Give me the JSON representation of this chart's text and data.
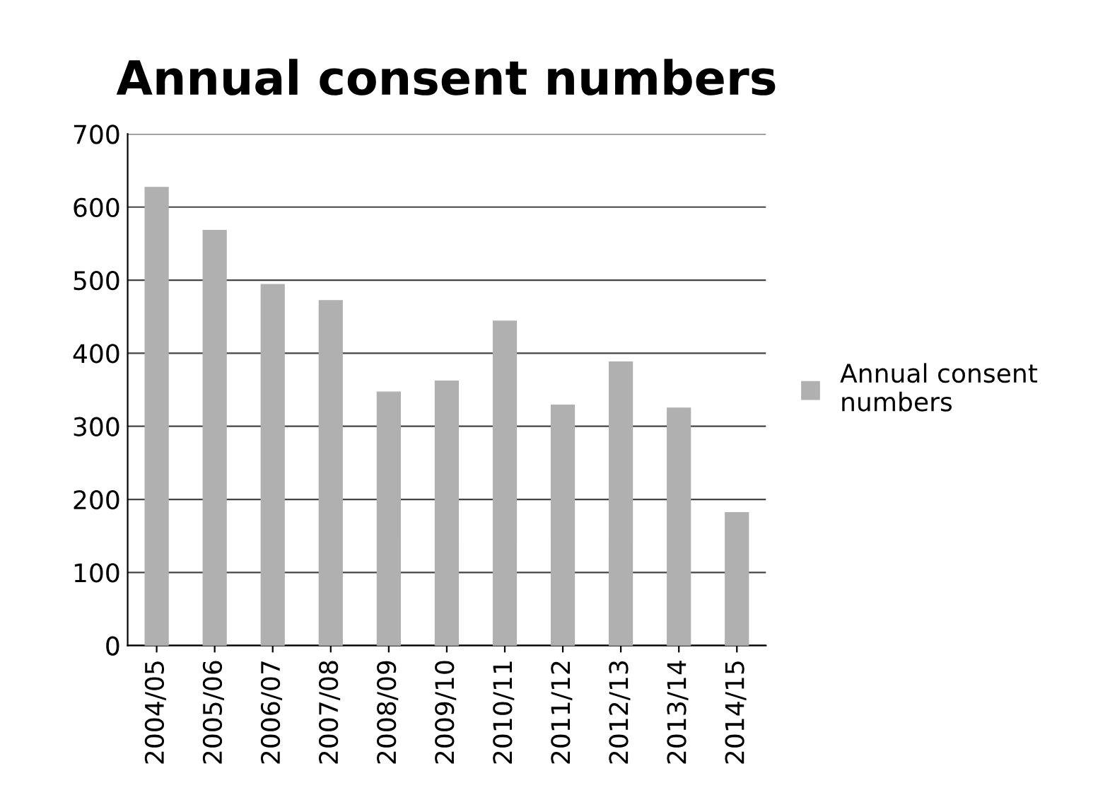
{
  "chart_data": {
    "type": "bar",
    "title": "Annual consent numbers",
    "categories": [
      "2004/05",
      "2005/06",
      "2006/07",
      "2007/08",
      "2008/09",
      "2009/10",
      "2010/11",
      "2011/12",
      "2012/13",
      "2013/14",
      "2014/15"
    ],
    "series": [
      {
        "name": "Annual consent\nnumbers",
        "color": "#b0b0b0",
        "values": [
          627,
          568,
          494,
          472,
          347,
          362,
          444,
          329,
          388,
          325,
          182
        ]
      }
    ],
    "ylim": [
      0,
      700
    ],
    "yticks": [
      0,
      100,
      200,
      300,
      400,
      500,
      600,
      700
    ],
    "grid": "y",
    "legend": "right"
  }
}
